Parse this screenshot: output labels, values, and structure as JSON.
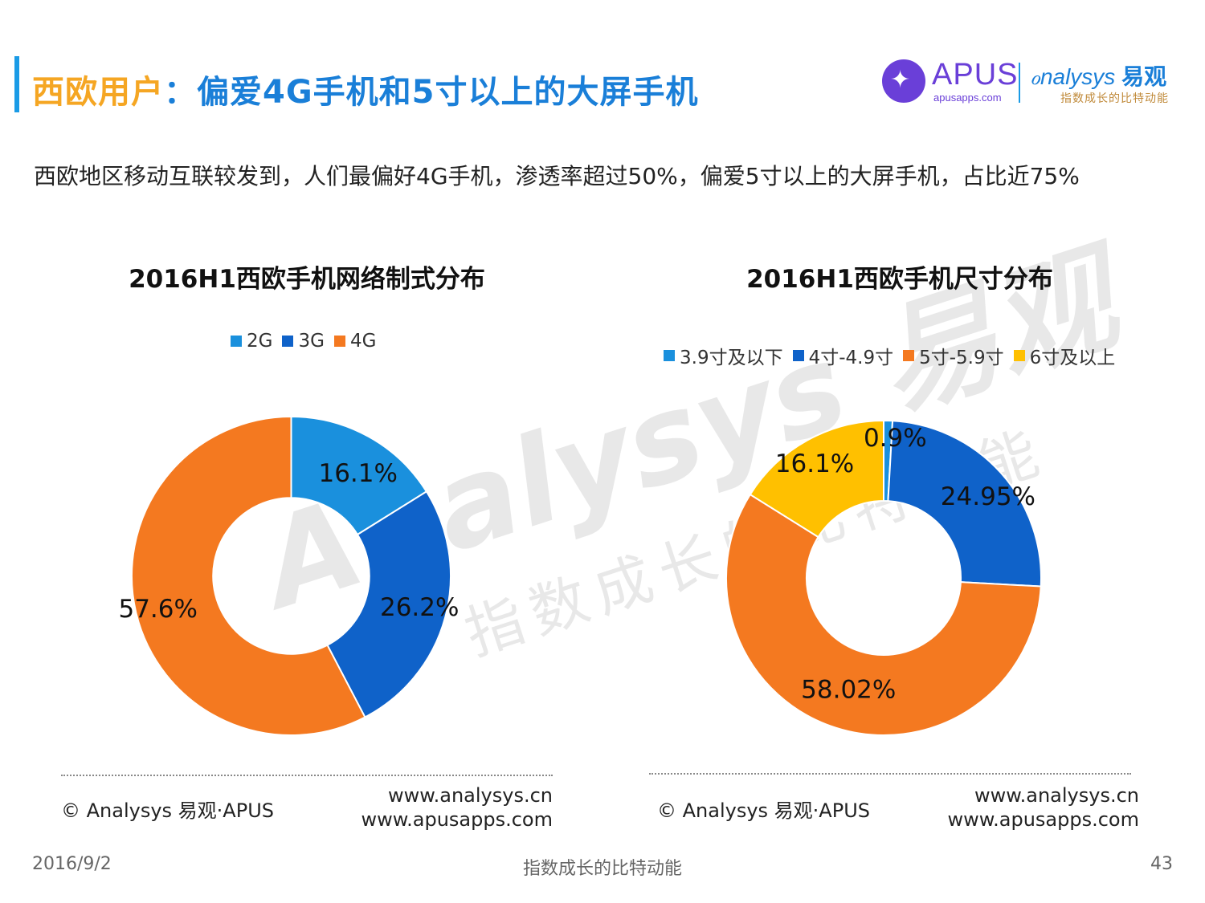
{
  "header": {
    "title_part1": "西欧用户",
    "title_part2": "：偏爱4G手机和5寸以上的大屏手机"
  },
  "logos": {
    "apus_name": "APUS",
    "apus_url": "apusapps.com",
    "analysys_name": "nalysys",
    "analysys_cn": "易观",
    "analysys_slogan": "指数成长的比特动能"
  },
  "watermark": {
    "brand": "Analysys 易观",
    "slogan": "指数成长的比特动能"
  },
  "summary": "西欧地区移动互联较发到，人们最偏好4G手机，渗透率超过50%，偏爱5寸以上的大屏手机，占比近75%",
  "colors": {
    "accent_blue": "#1a9be6",
    "title_orange": "#f5a623",
    "title_blue": "#1a7fd8"
  },
  "chart_data": [
    {
      "type": "pie",
      "donut": true,
      "title": "2016H1西欧手机网络制式分布",
      "legend_position": "top",
      "categories": [
        "2G",
        "3G",
        "4G"
      ],
      "values": [
        16.1,
        26.2,
        57.6
      ],
      "labels": [
        "16.1%",
        "26.2%",
        "57.6%"
      ],
      "colors": [
        "#1a90dd",
        "#0f62c9",
        "#f47920"
      ]
    },
    {
      "type": "pie",
      "donut": true,
      "title": "2016H1西欧手机尺寸分布",
      "legend_position": "top",
      "categories": [
        "3.9寸及以下",
        "4寸-4.9寸",
        "5寸-5.9寸",
        "6寸及以上"
      ],
      "values": [
        0.9,
        24.95,
        58.02,
        16.1
      ],
      "labels": [
        "0.9%",
        "24.95%",
        "58.02%",
        "16.1%"
      ],
      "colors": [
        "#1a90dd",
        "#0f62c9",
        "#f47920",
        "#ffc000"
      ]
    }
  ],
  "sources": {
    "left_copyright": "© Analysys 易观·APUS",
    "left_url1": "www.analysys.cn",
    "left_url2": "www.apusapps.com",
    "right_copyright": "© Analysys 易观·APUS",
    "right_url1": "www.analysys.cn",
    "right_url2": "www.apusapps.com"
  },
  "footer": {
    "date": "2016/9/2",
    "slogan": "指数成长的比特动能",
    "page": "43"
  }
}
